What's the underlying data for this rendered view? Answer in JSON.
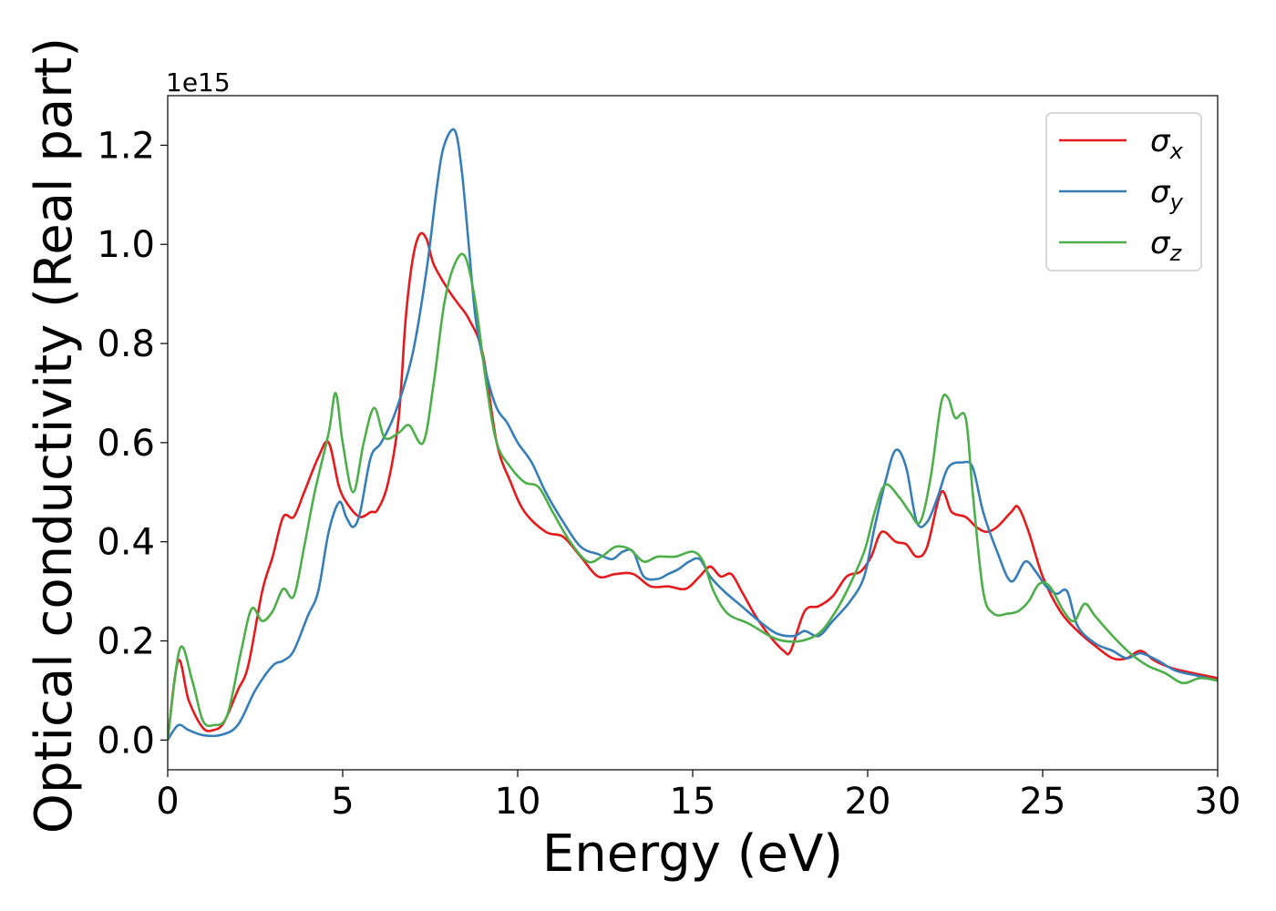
{
  "chart_data": {
    "type": "line",
    "title": "",
    "xlabel": "Energy (eV)",
    "ylabel": "Optical conductivity (Real part)",
    "y_offset_label": "1e15",
    "xlim": [
      0,
      30
    ],
    "ylim": [
      -0.06,
      1.3
    ],
    "x_ticks": [
      "0",
      "5",
      "10",
      "15",
      "20",
      "25",
      "30"
    ],
    "y_ticks": [
      "0.0",
      "0.2",
      "0.4",
      "0.6",
      "0.8",
      "1.0",
      "1.2"
    ],
    "grid": false,
    "legend_position": "top-right",
    "series": [
      {
        "name": "σx",
        "name_main": "σ",
        "name_sub": "x",
        "color": "#e41a1c",
        "points": [
          [
            0,
            0
          ],
          [
            0.3,
            0.16
          ],
          [
            0.6,
            0.08
          ],
          [
            1,
            0.025
          ],
          [
            1.3,
            0.02
          ],
          [
            1.6,
            0.035
          ],
          [
            2,
            0.1
          ],
          [
            2.3,
            0.15
          ],
          [
            2.7,
            0.3
          ],
          [
            3,
            0.37
          ],
          [
            3.3,
            0.45
          ],
          [
            3.6,
            0.45
          ],
          [
            3.9,
            0.5
          ],
          [
            4.3,
            0.57
          ],
          [
            4.6,
            0.6
          ],
          [
            4.9,
            0.51
          ],
          [
            5.2,
            0.47
          ],
          [
            5.5,
            0.45
          ],
          [
            5.8,
            0.46
          ],
          [
            6,
            0.465
          ],
          [
            6.3,
            0.52
          ],
          [
            6.6,
            0.65
          ],
          [
            6.8,
            0.85
          ],
          [
            7,
            0.97
          ],
          [
            7.2,
            1.02
          ],
          [
            7.4,
            1.01
          ],
          [
            7.6,
            0.96
          ],
          [
            8,
            0.91
          ],
          [
            8.3,
            0.88
          ],
          [
            8.6,
            0.85
          ],
          [
            9,
            0.78
          ],
          [
            9.4,
            0.6
          ],
          [
            9.8,
            0.52
          ],
          [
            10.2,
            0.46
          ],
          [
            10.8,
            0.42
          ],
          [
            11.3,
            0.41
          ],
          [
            11.8,
            0.37
          ],
          [
            12.3,
            0.33
          ],
          [
            12.8,
            0.335
          ],
          [
            13.3,
            0.335
          ],
          [
            13.8,
            0.31
          ],
          [
            14.3,
            0.31
          ],
          [
            14.8,
            0.305
          ],
          [
            15.2,
            0.33
          ],
          [
            15.5,
            0.35
          ],
          [
            15.8,
            0.33
          ],
          [
            16.1,
            0.335
          ],
          [
            16.4,
            0.3
          ],
          [
            16.8,
            0.25
          ],
          [
            17.2,
            0.21
          ],
          [
            17.6,
            0.18
          ],
          [
            17.8,
            0.18
          ],
          [
            18.2,
            0.26
          ],
          [
            18.6,
            0.27
          ],
          [
            19,
            0.29
          ],
          [
            19.4,
            0.33
          ],
          [
            19.8,
            0.34
          ],
          [
            20.1,
            0.37
          ],
          [
            20.4,
            0.42
          ],
          [
            20.8,
            0.4
          ],
          [
            21.1,
            0.395
          ],
          [
            21.4,
            0.37
          ],
          [
            21.7,
            0.39
          ],
          [
            22.1,
            0.5
          ],
          [
            22.4,
            0.46
          ],
          [
            22.8,
            0.45
          ],
          [
            23.1,
            0.43
          ],
          [
            23.4,
            0.42
          ],
          [
            23.7,
            0.43
          ],
          [
            24.1,
            0.46
          ],
          [
            24.3,
            0.47
          ],
          [
            24.6,
            0.42
          ],
          [
            25,
            0.33
          ],
          [
            25.5,
            0.26
          ],
          [
            26,
            0.22
          ],
          [
            26.5,
            0.19
          ],
          [
            27,
            0.165
          ],
          [
            27.4,
            0.165
          ],
          [
            27.8,
            0.18
          ],
          [
            28.2,
            0.16
          ],
          [
            28.7,
            0.145
          ],
          [
            29.3,
            0.135
          ],
          [
            30,
            0.125
          ]
        ]
      },
      {
        "name": "σy",
        "name_main": "σ",
        "name_sub": "y",
        "color": "#377eb8",
        "points": [
          [
            0,
            0
          ],
          [
            0.3,
            0.03
          ],
          [
            0.6,
            0.02
          ],
          [
            1,
            0.01
          ],
          [
            1.5,
            0.01
          ],
          [
            2,
            0.03
          ],
          [
            2.5,
            0.1
          ],
          [
            3,
            0.15
          ],
          [
            3.3,
            0.16
          ],
          [
            3.6,
            0.18
          ],
          [
            4,
            0.25
          ],
          [
            4.3,
            0.3
          ],
          [
            4.6,
            0.42
          ],
          [
            4.9,
            0.48
          ],
          [
            5.1,
            0.45
          ],
          [
            5.3,
            0.43
          ],
          [
            5.5,
            0.46
          ],
          [
            5.8,
            0.57
          ],
          [
            6.1,
            0.6
          ],
          [
            6.5,
            0.66
          ],
          [
            7,
            0.78
          ],
          [
            7.4,
            0.95
          ],
          [
            7.7,
            1.12
          ],
          [
            7.9,
            1.2
          ],
          [
            8.2,
            1.23
          ],
          [
            8.4,
            1.15
          ],
          [
            8.6,
            1.0
          ],
          [
            8.8,
            0.85
          ],
          [
            9.1,
            0.74
          ],
          [
            9.4,
            0.67
          ],
          [
            9.7,
            0.64
          ],
          [
            10,
            0.6
          ],
          [
            10.4,
            0.56
          ],
          [
            10.8,
            0.5
          ],
          [
            11.3,
            0.44
          ],
          [
            11.8,
            0.39
          ],
          [
            12.3,
            0.375
          ],
          [
            12.7,
            0.365
          ],
          [
            13.0,
            0.38
          ],
          [
            13.3,
            0.38
          ],
          [
            13.6,
            0.33
          ],
          [
            14,
            0.325
          ],
          [
            14.3,
            0.335
          ],
          [
            14.6,
            0.345
          ],
          [
            14.9,
            0.36
          ],
          [
            15.2,
            0.365
          ],
          [
            15.5,
            0.33
          ],
          [
            15.9,
            0.3
          ],
          [
            16.4,
            0.27
          ],
          [
            16.9,
            0.24
          ],
          [
            17.4,
            0.215
          ],
          [
            17.9,
            0.21
          ],
          [
            18.2,
            0.22
          ],
          [
            18.6,
            0.21
          ],
          [
            19,
            0.24
          ],
          [
            19.5,
            0.28
          ],
          [
            19.9,
            0.33
          ],
          [
            20.2,
            0.43
          ],
          [
            20.5,
            0.52
          ],
          [
            20.8,
            0.585
          ],
          [
            21.1,
            0.55
          ],
          [
            21.4,
            0.44
          ],
          [
            21.7,
            0.44
          ],
          [
            22.0,
            0.49
          ],
          [
            22.3,
            0.55
          ],
          [
            22.7,
            0.56
          ],
          [
            23,
            0.55
          ],
          [
            23.3,
            0.46
          ],
          [
            23.7,
            0.38
          ],
          [
            24.1,
            0.32
          ],
          [
            24.5,
            0.36
          ],
          [
            24.8,
            0.34
          ],
          [
            25.1,
            0.31
          ],
          [
            25.4,
            0.295
          ],
          [
            25.7,
            0.3
          ],
          [
            26,
            0.23
          ],
          [
            26.5,
            0.195
          ],
          [
            27,
            0.18
          ],
          [
            27.4,
            0.165
          ],
          [
            27.8,
            0.175
          ],
          [
            28.3,
            0.16
          ],
          [
            28.8,
            0.14
          ],
          [
            29.4,
            0.13
          ],
          [
            30,
            0.12
          ]
        ]
      },
      {
        "name": "σz",
        "name_main": "σ",
        "name_sub": "z",
        "color": "#4daf4a",
        "points": [
          [
            0,
            0
          ],
          [
            0.35,
            0.185
          ],
          [
            0.7,
            0.12
          ],
          [
            1,
            0.04
          ],
          [
            1.3,
            0.03
          ],
          [
            1.7,
            0.05
          ],
          [
            2.1,
            0.18
          ],
          [
            2.4,
            0.265
          ],
          [
            2.7,
            0.24
          ],
          [
            3,
            0.26
          ],
          [
            3.3,
            0.305
          ],
          [
            3.6,
            0.29
          ],
          [
            3.9,
            0.39
          ],
          [
            4.2,
            0.5
          ],
          [
            4.6,
            0.62
          ],
          [
            4.8,
            0.7
          ],
          [
            5.0,
            0.6
          ],
          [
            5.3,
            0.5
          ],
          [
            5.6,
            0.6
          ],
          [
            5.9,
            0.67
          ],
          [
            6.2,
            0.61
          ],
          [
            6.6,
            0.62
          ],
          [
            6.9,
            0.635
          ],
          [
            7.3,
            0.6
          ],
          [
            7.6,
            0.72
          ],
          [
            7.9,
            0.88
          ],
          [
            8.2,
            0.96
          ],
          [
            8.5,
            0.975
          ],
          [
            8.8,
            0.88
          ],
          [
            9.1,
            0.72
          ],
          [
            9.4,
            0.6
          ],
          [
            9.8,
            0.55
          ],
          [
            10.2,
            0.52
          ],
          [
            10.6,
            0.51
          ],
          [
            11,
            0.46
          ],
          [
            11.5,
            0.4
          ],
          [
            12,
            0.36
          ],
          [
            12.4,
            0.37
          ],
          [
            12.8,
            0.39
          ],
          [
            13.2,
            0.385
          ],
          [
            13.6,
            0.36
          ],
          [
            14,
            0.37
          ],
          [
            14.5,
            0.37
          ],
          [
            15,
            0.38
          ],
          [
            15.3,
            0.36
          ],
          [
            15.6,
            0.3
          ],
          [
            16,
            0.255
          ],
          [
            16.6,
            0.235
          ],
          [
            17.2,
            0.21
          ],
          [
            17.6,
            0.2
          ],
          [
            18.1,
            0.2
          ],
          [
            18.6,
            0.215
          ],
          [
            19,
            0.25
          ],
          [
            19.4,
            0.3
          ],
          [
            19.9,
            0.38
          ],
          [
            20.2,
            0.46
          ],
          [
            20.5,
            0.515
          ],
          [
            20.9,
            0.49
          ],
          [
            21.2,
            0.46
          ],
          [
            21.5,
            0.44
          ],
          [
            21.8,
            0.53
          ],
          [
            22.1,
            0.68
          ],
          [
            22.3,
            0.69
          ],
          [
            22.5,
            0.65
          ],
          [
            22.8,
            0.65
          ],
          [
            23,
            0.5
          ],
          [
            23.3,
            0.3
          ],
          [
            23.6,
            0.255
          ],
          [
            24.0,
            0.255
          ],
          [
            24.3,
            0.26
          ],
          [
            24.6,
            0.28
          ],
          [
            24.9,
            0.315
          ],
          [
            25.2,
            0.31
          ],
          [
            25.6,
            0.26
          ],
          [
            25.9,
            0.24
          ],
          [
            26.2,
            0.275
          ],
          [
            26.5,
            0.25
          ],
          [
            27,
            0.21
          ],
          [
            27.5,
            0.175
          ],
          [
            28,
            0.15
          ],
          [
            28.5,
            0.135
          ],
          [
            29,
            0.115
          ],
          [
            29.5,
            0.125
          ],
          [
            30,
            0.12
          ]
        ]
      }
    ]
  }
}
